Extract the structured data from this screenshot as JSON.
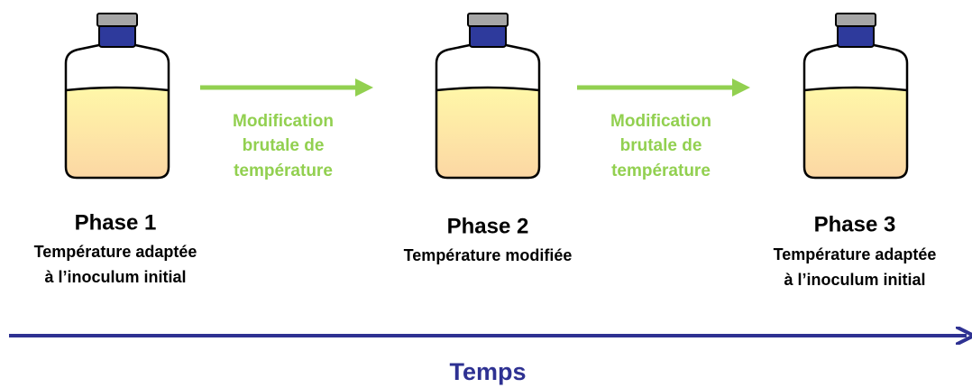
{
  "phases": [
    {
      "title": "Phase 1",
      "subtitle": [
        "Température adaptée",
        "à l’inoculum initial"
      ]
    },
    {
      "title": "Phase 2",
      "subtitle": [
        "Température modifiée"
      ]
    },
    {
      "title": "Phase 3",
      "subtitle": [
        "Température adaptée",
        "à l’inoculum initial"
      ]
    }
  ],
  "transitions": [
    {
      "label": [
        "Modification",
        "brutale de",
        "température"
      ]
    },
    {
      "label": [
        "Modification",
        "brutale de",
        "température"
      ]
    }
  ],
  "axis": {
    "label": "Temps"
  }
}
